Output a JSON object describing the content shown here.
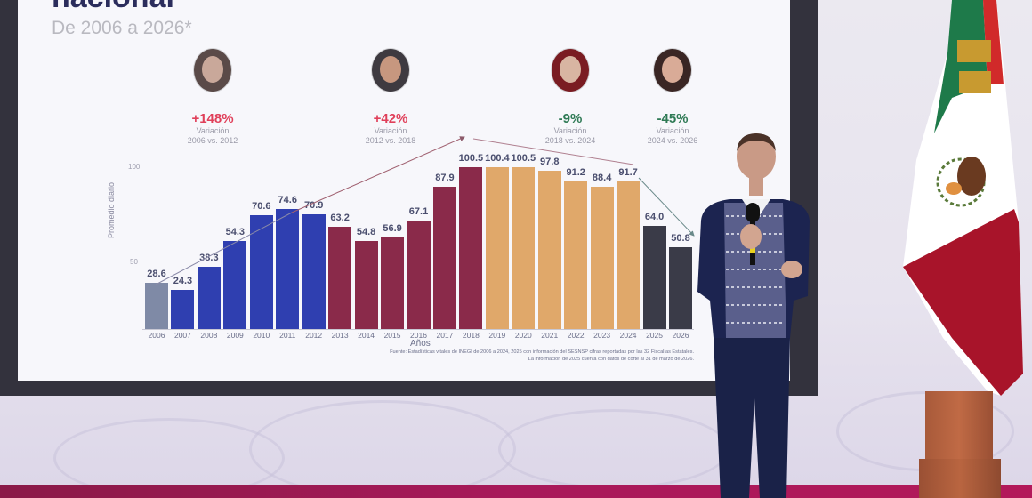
{
  "slide": {
    "title_partial": "nacional",
    "subtitle": "De 2006 a 2026*",
    "periods": [
      {
        "pct": "+148%",
        "label": "Variación",
        "range": "2006 vs. 2012",
        "color": "#e0405a"
      },
      {
        "pct": "+42%",
        "label": "Variación",
        "range": "2012 vs. 2018",
        "color": "#e0405a"
      },
      {
        "pct": "-9%",
        "label": "Variación",
        "range": "2018 vs. 2024",
        "color": "#2f7a55"
      },
      {
        "pct": "-45%",
        "label": "Variación",
        "range": "2024 vs.  2026",
        "color": "#2f7a55"
      }
    ],
    "y_axis_title": "Promedio diario",
    "y_ticks": [
      "100",
      "50"
    ],
    "x_axis_title": "Años",
    "source_line1": "Fuente: Estadísticas vitales de INEGI de 2006 a 2024, 2025 con información del SESNSP cifras reportadas por las 32 Fiscalías Estatales.",
    "source_line2": "La información de 2025 cuenta con datos de corte al 31 de marzo de 2026."
  },
  "chart_data": {
    "type": "bar",
    "title": "nacional — De 2006 a 2026*",
    "xlabel": "Años",
    "ylabel": "Promedio diario",
    "ylim": [
      0,
      100
    ],
    "grid": false,
    "categories": [
      "2006",
      "2007",
      "2008",
      "2009",
      "2010",
      "2011",
      "2012",
      "2013",
      "2014",
      "2015",
      "2016",
      "2017",
      "2018",
      "2019",
      "2020",
      "2021",
      "2022",
      "2023",
      "2024",
      "2025",
      "2026"
    ],
    "values": [
      28.6,
      24.3,
      38.3,
      54.3,
      70.6,
      74.6,
      70.9,
      63.2,
      54.8,
      56.9,
      67.1,
      87.9,
      100.5,
      100.4,
      100.5,
      97.8,
      91.2,
      88.4,
      91.7,
      64.0,
      50.8
    ],
    "value_labels": [
      "28.6",
      "24.3",
      "38.3",
      "54.3",
      "70.6",
      "74.6",
      "70.9",
      "63.2",
      "54.8",
      "56.9",
      "67.1",
      "87.9",
      "100.5",
      "100.4",
      "100.5",
      "97.8",
      "91.2",
      "88.4",
      "91.7",
      "64.0",
      "50.8"
    ],
    "bar_colors": [
      "#7f8aa6",
      "#2f3fb0",
      "#2f3fb0",
      "#2f3fb0",
      "#2f3fb0",
      "#2f3fb0",
      "#2f3fb0",
      "#8a2a4a",
      "#8a2a4a",
      "#8a2a4a",
      "#8a2a4a",
      "#8a2a4a",
      "#8a2a4a",
      "#e0a86a",
      "#e0a86a",
      "#e0a86a",
      "#e0a86a",
      "#e0a86a",
      "#e0a86a",
      "#3a3b48",
      "#3a3b48"
    ],
    "annotations": [
      {
        "label": "+148%",
        "text": "Variación 2006 vs. 2012"
      },
      {
        "label": "+42%",
        "text": "Variación 2012 vs. 2018"
      },
      {
        "label": "-9%",
        "text": "Variación 2018 vs. 2024"
      },
      {
        "label": "-45%",
        "text": "Variación 2024 vs. 2026"
      }
    ]
  },
  "colors": {
    "accent_positive": "#e0405a",
    "accent_negative": "#2f7a55",
    "title": "#2b2d5c",
    "floor_stripe": "#a8195a"
  }
}
